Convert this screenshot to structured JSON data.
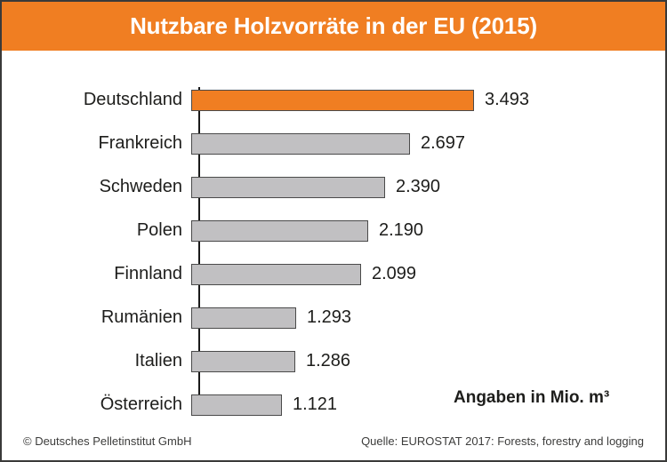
{
  "colors": {
    "brand_orange": "#F07E22",
    "bar_default": "#C1C0C2",
    "bar_border": "#4a4a4a",
    "axis": "#1a1a1a",
    "text": "#1d1d1b",
    "footer_text": "#3c3c3b",
    "frame_border": "#3a3a39",
    "title_text": "#ffffff"
  },
  "footer": {
    "copyright": "© Deutsches Pelletinstitut GmbH",
    "source": "Quelle: EUROSTAT 2017: Forests, forestry and logging"
  },
  "chart_data": {
    "type": "bar",
    "orientation": "horizontal",
    "title": "Nutzbare Holzvorräte in der EU (2015)",
    "unit_note": "Angaben in Mio. m³",
    "categories": [
      "Deutschland",
      "Frankreich",
      "Schweden",
      "Polen",
      "Finnland",
      "Rumänien",
      "Italien",
      "Österreich"
    ],
    "values": [
      3493,
      2697,
      2390,
      2190,
      2099,
      1293,
      1286,
      1121
    ],
    "value_labels": [
      "3.493",
      "2.697",
      "2.390",
      "2.190",
      "2.099",
      "1.293",
      "1.286",
      "1.121"
    ],
    "unit": "Mio. m³",
    "highlight_index": 0,
    "xlim": [
      0,
      3493
    ],
    "grid": false,
    "legend": false,
    "value_labels_position": "right-of-bar"
  }
}
